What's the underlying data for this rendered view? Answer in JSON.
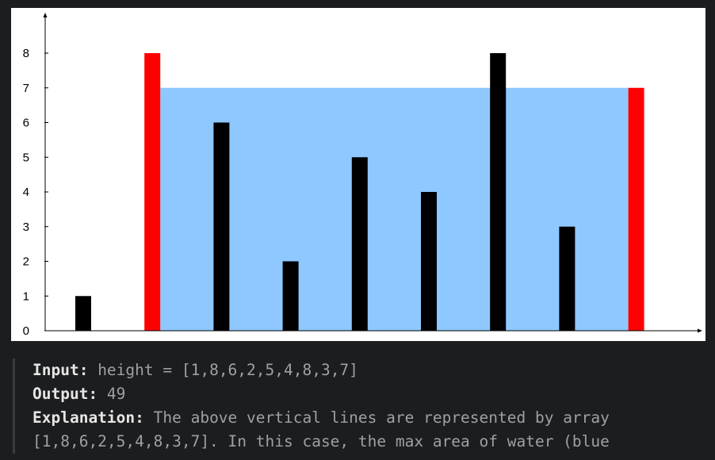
{
  "chart_data": {
    "type": "bar",
    "title": "",
    "xlabel": "",
    "ylabel": "",
    "categories": [
      "",
      "",
      "",
      "",
      "",
      "",
      "",
      "",
      ""
    ],
    "values": [
      1,
      8,
      6,
      2,
      5,
      4,
      8,
      3,
      7
    ],
    "ylim": [
      0,
      9
    ],
    "yticks": [
      "0",
      "1",
      "2",
      "3",
      "4",
      "5",
      "6",
      "7",
      "8"
    ],
    "container": {
      "left_index": 1,
      "right_index": 8,
      "water_level": 7
    },
    "colors": {
      "bar": "#000000",
      "selected_bar": "#ff0000",
      "water": "#8ec8ff",
      "axis": "#000000"
    }
  },
  "example": {
    "input_label": "Input:",
    "input_value": " height = [1,8,6,2,5,4,8,3,7]",
    "output_label": "Output:",
    "output_value": " 49",
    "explanation_label": "Explanation:",
    "explanation_line1": " The above vertical lines are represented by array",
    "explanation_line2": "[1,8,6,2,5,4,8,3,7]. In this case, the max area of water (blue"
  }
}
